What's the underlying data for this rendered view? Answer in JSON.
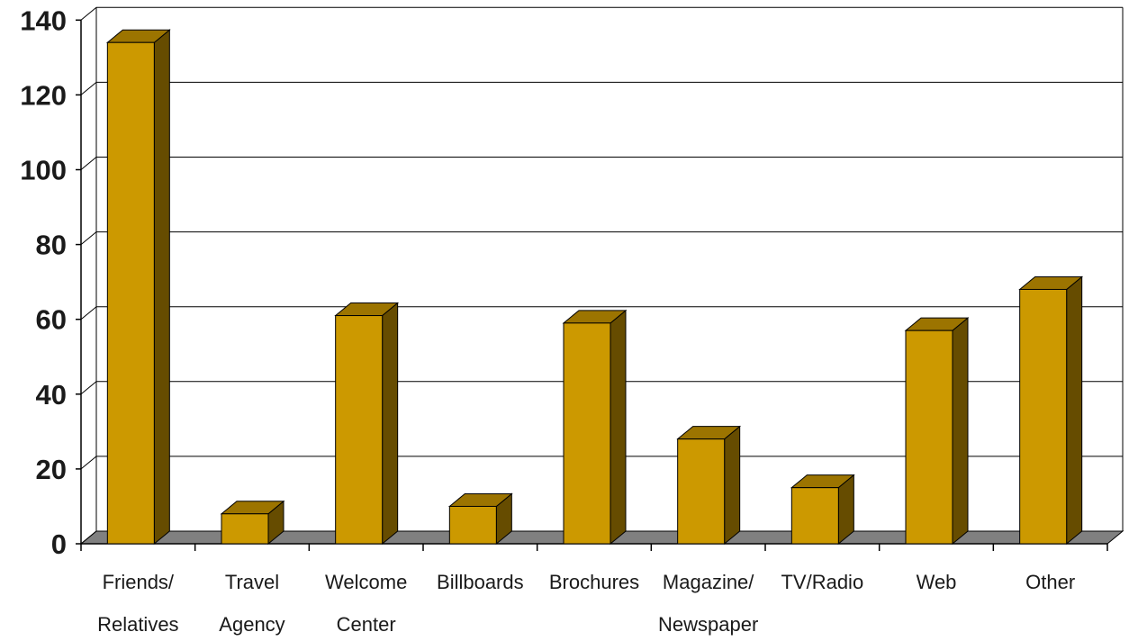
{
  "chart_data": {
    "type": "bar",
    "title": "",
    "xlabel": "",
    "ylabel": "",
    "categories": [
      [
        "Friends/",
        "Relatives"
      ],
      [
        "Travel",
        "Agency"
      ],
      [
        "Welcome",
        "Center"
      ],
      [
        "Billboards"
      ],
      [
        "Brochures"
      ],
      [
        "Magazine/",
        "Newspaper"
      ],
      [
        "TV/Radio"
      ],
      [
        "Web"
      ],
      [
        "Other"
      ]
    ],
    "values": [
      134,
      8,
      61,
      10,
      59,
      28,
      15,
      57,
      68
    ],
    "ylim": [
      0,
      140
    ],
    "yticks": [
      "0",
      "20",
      "40",
      "60",
      "80",
      "100",
      "120",
      "140"
    ],
    "grid": true,
    "style": "3d-column",
    "colors": {
      "front": "#CC9900",
      "top": "#9C7400",
      "side": "#664C00",
      "floor": "#808080",
      "axis": "#000000"
    }
  }
}
